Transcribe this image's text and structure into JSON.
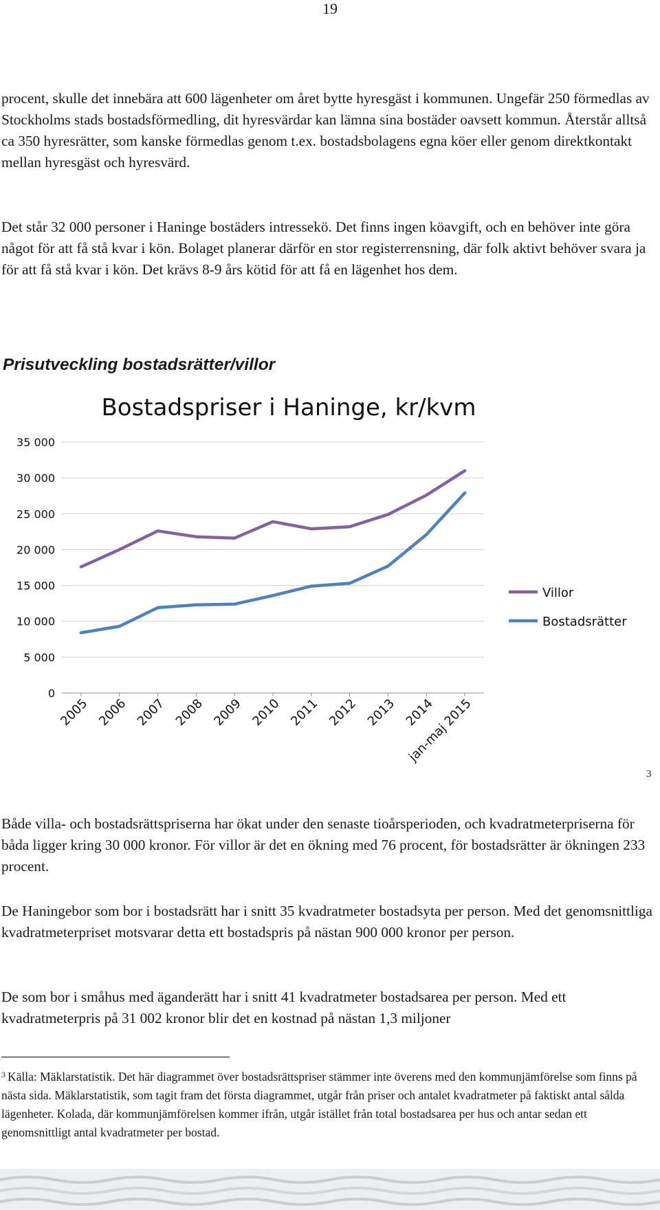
{
  "page_number": "19",
  "paragraphs": {
    "p1": "procent, skulle det innebära att 600 lägenheter om året bytte hyresgäst i kommunen. Ungefär 250 förmedlas av Stockholms stads bostadsförmedling, dit hyresvärdar kan lämna sina bostäder oavsett kommun. Återstår alltså ca 350 hyresrätter, som kanske förmedlas genom t.ex. bostadsbolagens egna köer eller genom direktkontakt mellan hyresgäst och hyresvärd.",
    "p2": "Det står 32 000 personer i Haninge bostäders intressekö. Det finns ingen köavgift, och en behöver inte göra något för att få stå kvar i kön. Bolaget planerar därför en stor registerrensning, där folk aktivt behöver svara ja för att få stå kvar i kön. Det krävs 8-9 års kötid för att få en lägenhet hos dem.",
    "p3": "Både villa- och bostadsrättspriserna har ökat under den senaste tioårsperioden, och kvadratmeterpriserna för båda ligger kring 30 000 kronor. För villor är det en ökning med 76 procent, för bostadsrätter är ökningen 233 procent.",
    "p4": "De Haningebor som bor i bostadsrätt har i snitt 35 kvadratmeter bostadsyta per person. Med det genomsnittliga kvadratmeterpriset motsvarar detta ett bostadspris på nästan 900 000 kronor per person.",
    "p5": "De som bor i småhus med äganderätt har i snitt 41 kvadratmeter bostadsarea per person. Med ett kvadratmeterpris på 31 002 kronor blir det en kostnad på nästan 1,3 miljoner"
  },
  "section_heading": "Prisutveckling bostadsrätter/villor",
  "footnote_ref": "3",
  "footnote": {
    "marker": "3",
    "text": "Källa: Mäklarstatistik. Det här diagrammet över bostadsrättspriser stämmer inte överens med den kommunjämförelse som finns på nästa sida. Mäklarstatistik, som tagit fram det första diagrammet, utgår från priser och antalet kvadratmeter på faktiskt antal sålda lägenheter. Kolada, där kommunjämförelsen kommer ifrån, utgår istället från total bostadsarea per hus och antar sedan ett genomsnittligt antal kvadratmeter per bostad."
  },
  "chart_data": {
    "type": "line",
    "title": "Bostadspriser i Haninge, kr/kvm",
    "xlabel": "",
    "ylabel": "",
    "ylim": [
      0,
      35000
    ],
    "yticks": [
      0,
      5000,
      10000,
      15000,
      20000,
      25000,
      30000,
      35000
    ],
    "ytick_labels": [
      "0",
      "5 000",
      "10 000",
      "15 000",
      "20 000",
      "25 000",
      "30 000",
      "35 000"
    ],
    "categories": [
      "2005",
      "2006",
      "2007",
      "2008",
      "2009",
      "2010",
      "2011",
      "2012",
      "2013",
      "2014",
      "jan-maj 2015"
    ],
    "grid": true,
    "legend_position": "right",
    "series": [
      {
        "name": "Villor",
        "color": "#8064a2",
        "values": [
          17600,
          20000,
          22600,
          21800,
          21600,
          23900,
          22900,
          23200,
          24900,
          27600,
          31000
        ]
      },
      {
        "name": "Bostadsrätter",
        "color": "#4f81bd",
        "values": [
          8400,
          9300,
          11900,
          12300,
          12400,
          13600,
          14900,
          15300,
          17700,
          22100,
          27900
        ]
      }
    ]
  }
}
